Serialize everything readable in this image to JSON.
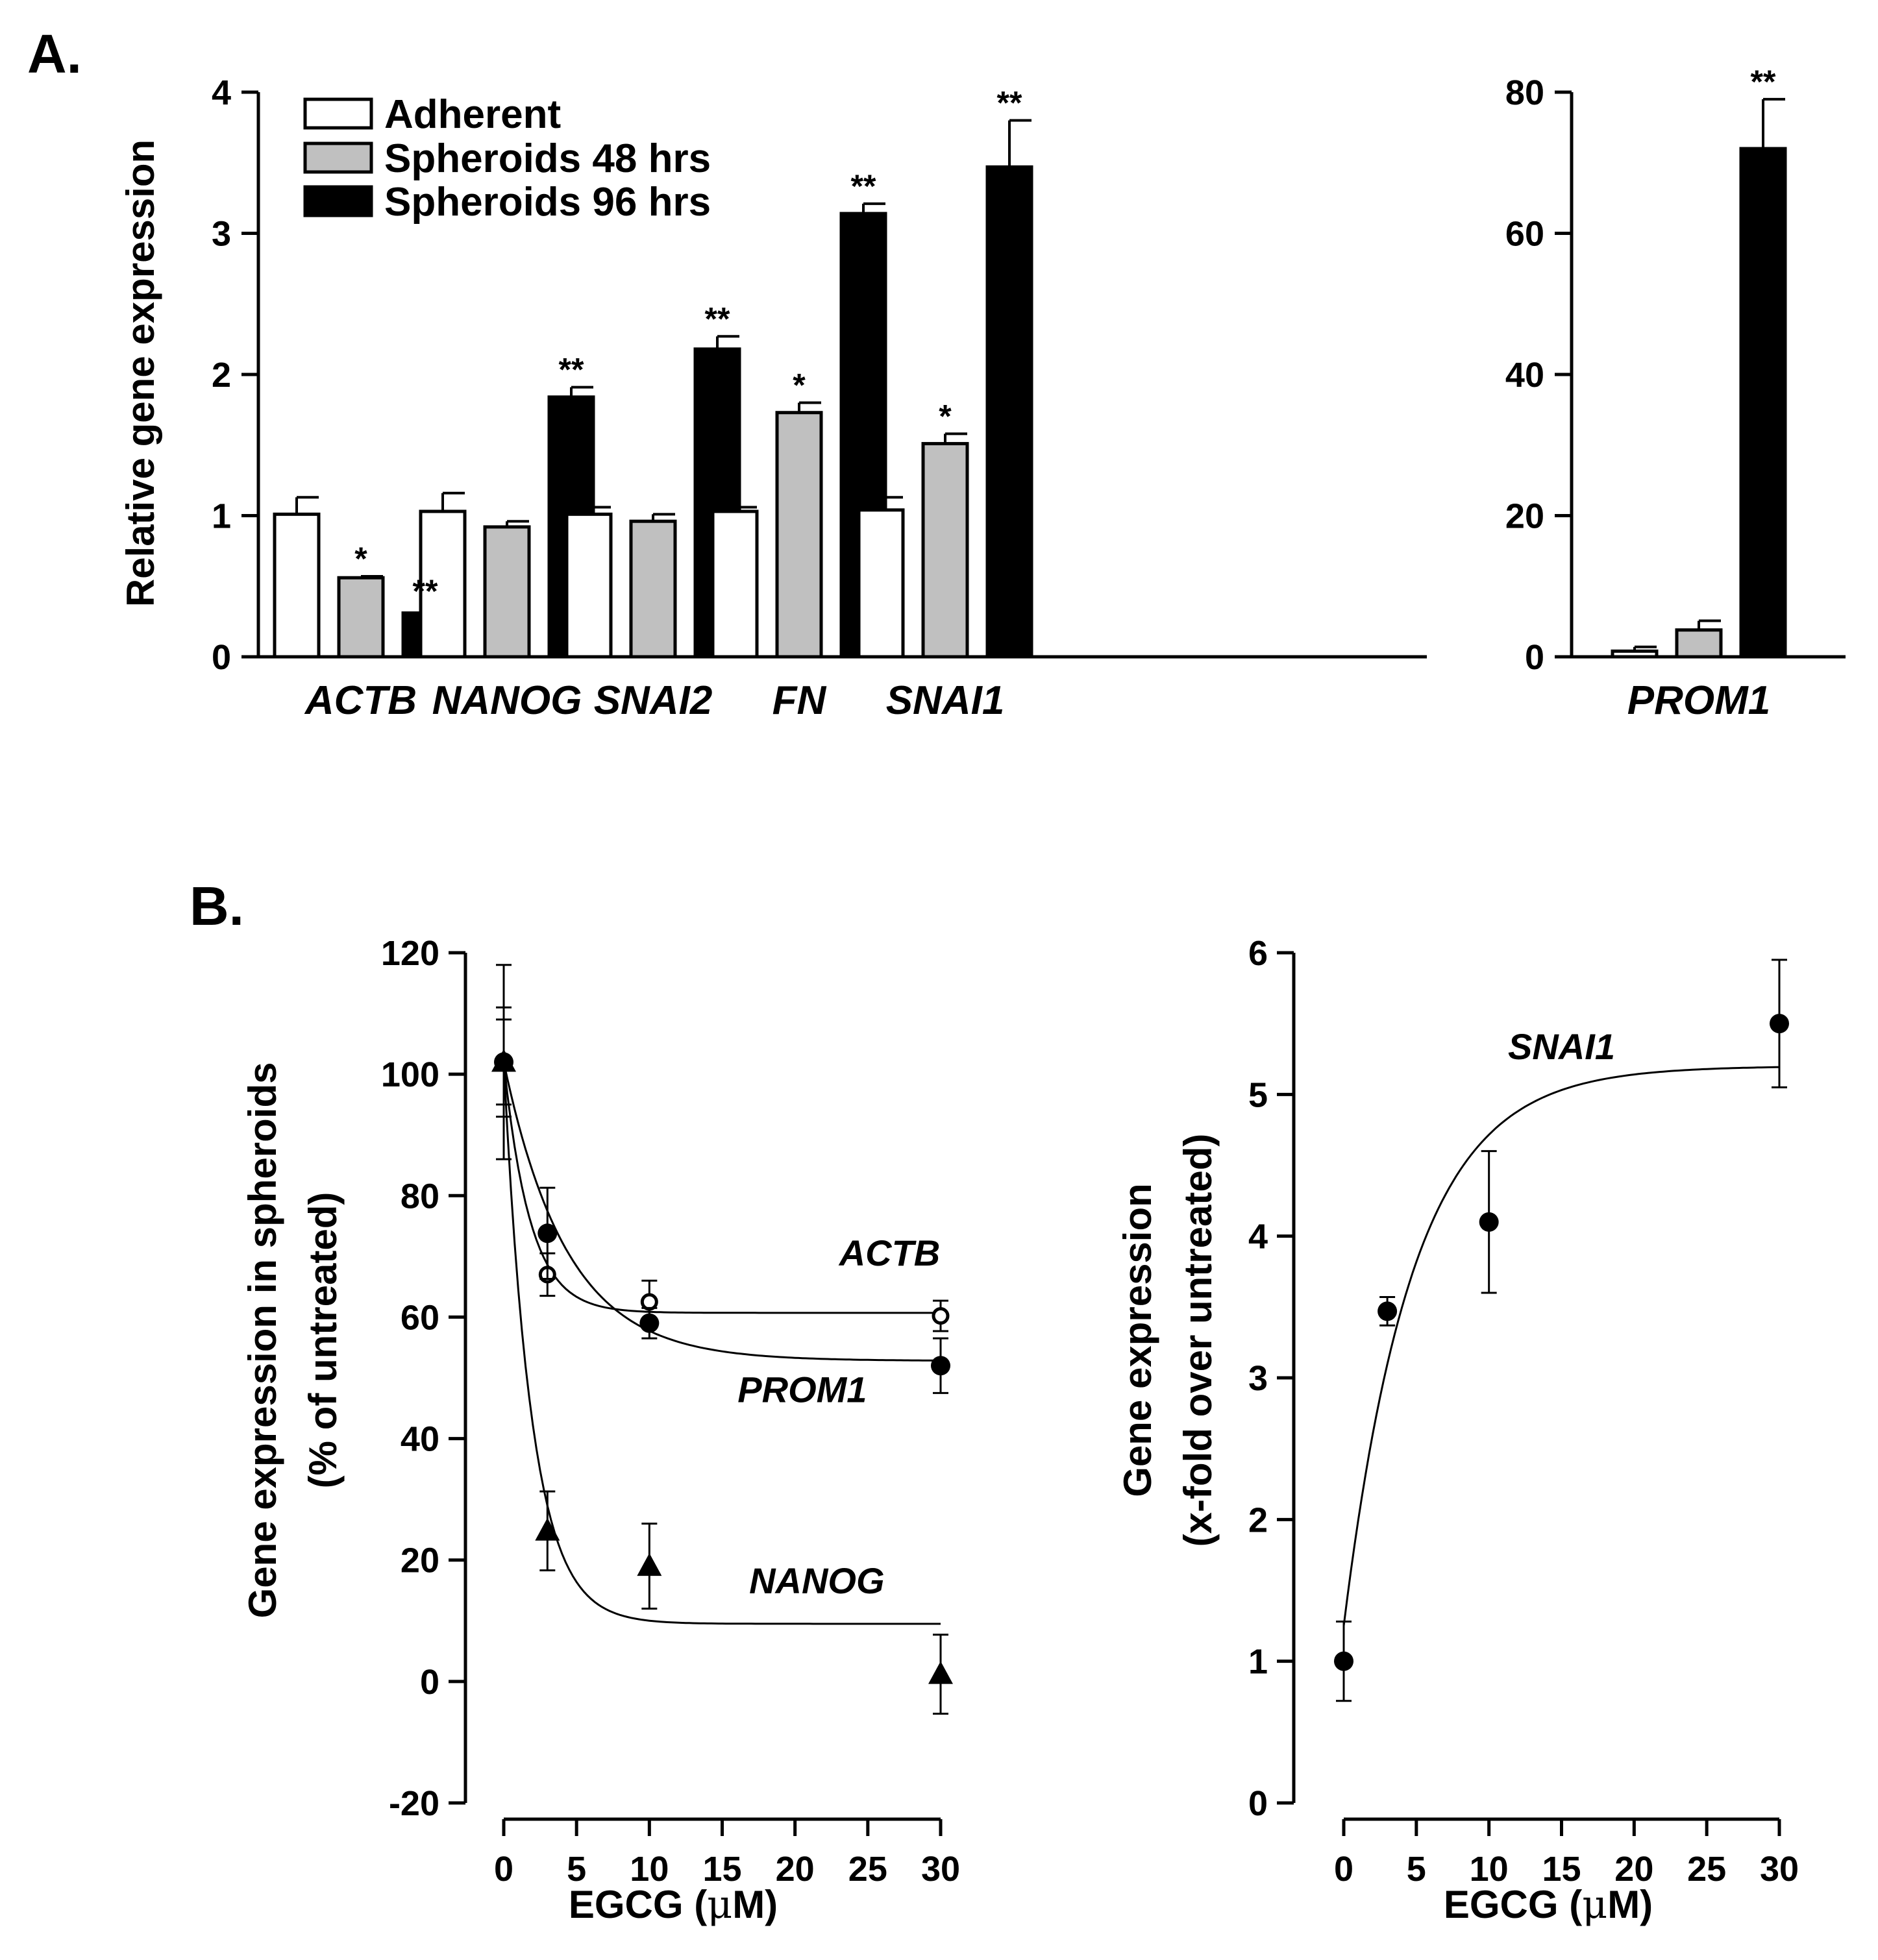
{
  "chart_data": [
    {
      "id": "A-left",
      "type": "bar",
      "panel_label": "A.",
      "ylabel": "Relative gene expression",
      "ylim": [
        0,
        4
      ],
      "yticks": [
        0,
        1,
        2,
        3,
        4
      ],
      "categories": [
        "ACTB",
        "NANOG",
        "SNAI2",
        "FN",
        "SNAI1"
      ],
      "series": [
        {
          "name": "Adherent",
          "color": "#ffffff",
          "values": [
            1.01,
            1.03,
            1.01,
            1.03,
            1.04
          ],
          "errors": [
            0.12,
            0.13,
            0.05,
            0.03,
            0.09
          ],
          "sig": [
            "",
            "",
            "",
            "",
            ""
          ]
        },
        {
          "name": "Spheroids 48 hrs",
          "color": "#c0c0c0",
          "values": [
            0.56,
            0.92,
            0.96,
            1.73,
            1.51
          ],
          "errors": [
            0.01,
            0.04,
            0.05,
            0.07,
            0.07
          ],
          "sig": [
            "*",
            "",
            "",
            "*",
            "*"
          ]
        },
        {
          "name": "Spheroids 96 hrs",
          "color": "#000000",
          "values": [
            0.31,
            1.84,
            2.18,
            3.14,
            3.47
          ],
          "errors": [
            0.03,
            0.07,
            0.09,
            0.07,
            0.33
          ],
          "sig": [
            "**",
            "**",
            "**",
            "**",
            "**"
          ]
        }
      ],
      "legend_position": "top-left"
    },
    {
      "id": "A-right",
      "type": "bar",
      "ylim": [
        0,
        80
      ],
      "yticks": [
        0,
        20,
        40,
        60,
        80
      ],
      "categories": [
        "PROM1"
      ],
      "series": [
        {
          "name": "Adherent",
          "color": "#ffffff",
          "values": [
            0.8
          ],
          "errors": [
            0.6
          ],
          "sig": [
            ""
          ]
        },
        {
          "name": "Spheroids 48 hrs",
          "color": "#c0c0c0",
          "values": [
            3.8
          ],
          "errors": [
            1.3
          ],
          "sig": [
            ""
          ]
        },
        {
          "name": "Spheroids 96 hrs",
          "color": "#000000",
          "values": [
            72
          ],
          "errors": [
            7
          ],
          "sig": [
            "**"
          ]
        }
      ]
    },
    {
      "id": "B-left",
      "type": "scatter",
      "panel_label": "B.",
      "xlabel_prefix": "EGCG (",
      "xlabel_unit": "μ",
      "xlabel_suffix": "M)",
      "ylabel_line1": "Gene expression in spheroids",
      "ylabel_line2": "(% of untreated)",
      "xlim": [
        0,
        30
      ],
      "xticks": [
        0,
        5,
        10,
        15,
        20,
        25,
        30
      ],
      "ylim": [
        -20,
        120
      ],
      "yticks": [
        -20,
        0,
        20,
        40,
        60,
        80,
        100,
        120
      ],
      "series": [
        {
          "name": "ACTB",
          "marker": "open-circle",
          "x": [
            0,
            3,
            10,
            30
          ],
          "y": [
            102,
            67,
            62.5,
            60.2
          ],
          "errors": [
            16,
            3.5,
            3.5,
            2.5
          ],
          "fit": {
            "a": 60.7,
            "b": 41.3,
            "k": 0.55
          },
          "label_at": [
            26.5,
            68.5
          ]
        },
        {
          "name": "PROM1",
          "marker": "filled-circle",
          "x": [
            0,
            3,
            10,
            30
          ],
          "y": [
            102,
            73.8,
            59,
            52
          ],
          "errors": [
            9,
            7.5,
            2.5,
            4.5
          ],
          "fit": {
            "a": 52.8,
            "b": 49.2,
            "k": 0.23
          },
          "label_at": [
            20.5,
            46
          ]
        },
        {
          "name": "NANOG",
          "marker": "filled-triangle",
          "x": [
            0,
            3,
            10,
            30
          ],
          "y": [
            102,
            24.8,
            19,
            1.2
          ],
          "errors": [
            7,
            6.5,
            7,
            6.5
          ],
          "fit": {
            "a": 9.5,
            "b": 92.5,
            "k": 0.52
          },
          "label_at": [
            21.5,
            14.5
          ]
        }
      ]
    },
    {
      "id": "B-right",
      "type": "scatter",
      "xlabel_prefix": "EGCG (",
      "xlabel_unit": "μ",
      "xlabel_suffix": "M)",
      "ylabel_line1": "Gene expression",
      "ylabel_line2": "(x-fold over untreated)",
      "xlim": [
        0,
        30
      ],
      "xticks": [
        0,
        5,
        10,
        15,
        20,
        25,
        30
      ],
      "ylim": [
        0,
        6
      ],
      "yticks": [
        0,
        1,
        2,
        3,
        4,
        5,
        6
      ],
      "series": [
        {
          "name": "SNAI1",
          "marker": "filled-circle",
          "x": [
            0,
            3,
            10,
            30
          ],
          "y": [
            1.0,
            3.47,
            4.1,
            5.5
          ],
          "errors": [
            0.28,
            0.1,
            0.5,
            0.45
          ],
          "fit": {
            "a": 5.2,
            "b": -3.95,
            "k": 0.21
          },
          "label_at": [
            15,
            5.25
          ]
        }
      ]
    }
  ]
}
